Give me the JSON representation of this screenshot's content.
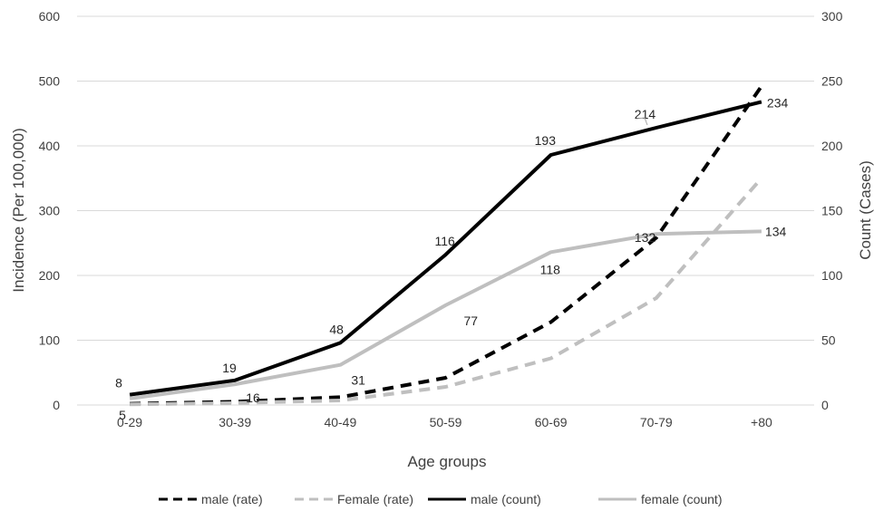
{
  "chart_data": {
    "type": "line",
    "categories": [
      "0-29",
      "30-39",
      "40-49",
      "50-59",
      "60-69",
      "70-79",
      "+80"
    ],
    "xlabel": "Age groups",
    "ylabel_left": "Incidence (Per 100,000)",
    "ylabel_right": "Count (Cases)",
    "ylim_left": [
      0,
      600
    ],
    "ylim_right": [
      0,
      300
    ],
    "yticks_left": [
      "0",
      "100",
      "200",
      "300",
      "400",
      "500",
      "600"
    ],
    "yticks_right": [
      "0",
      "50",
      "100",
      "150",
      "200",
      "250",
      "300"
    ],
    "grid": true,
    "legend_position": "bottom",
    "series": [
      {
        "name": "male (rate)",
        "axis": "left",
        "style": "dashed",
        "color": "#000000",
        "values": [
          2,
          5,
          12,
          42,
          128,
          258,
          492
        ]
      },
      {
        "name": "Female (rate)",
        "axis": "left",
        "style": "dashed",
        "color": "#bfbfbf",
        "values": [
          1,
          3,
          7,
          28,
          72,
          165,
          350
        ]
      },
      {
        "name": "male (count)",
        "axis": "right",
        "style": "solid",
        "color": "#000000",
        "values": [
          8,
          19,
          48,
          116,
          193,
          214,
          234
        ],
        "labels": [
          "8",
          "19",
          "48",
          "116",
          "193",
          "214",
          "234"
        ]
      },
      {
        "name": "female (count)",
        "axis": "right",
        "style": "solid",
        "color": "#bfbfbf",
        "values": [
          5,
          16,
          31,
          77,
          118,
          132,
          134
        ],
        "labels": [
          "5",
          "16",
          "31",
          "77",
          "118",
          "132",
          "134"
        ]
      }
    ]
  }
}
